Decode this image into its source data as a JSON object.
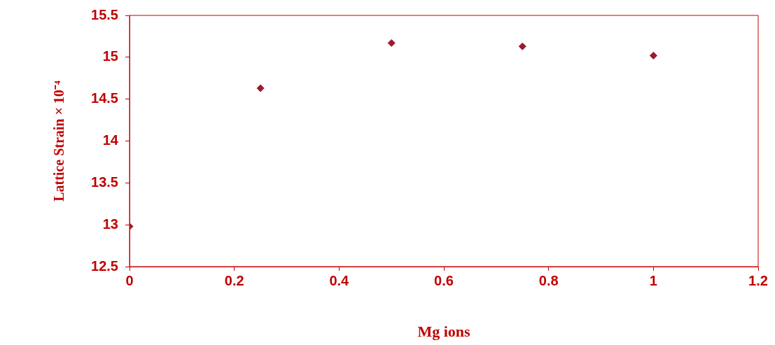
{
  "chart_data": {
    "type": "scatter",
    "xlabel": "Mg ions",
    "ylabel": "Lattice Strain × 10⁻⁴",
    "x": [
      0,
      0.25,
      0.5,
      0.75,
      1
    ],
    "series": [
      {
        "color": "#9b1b30",
        "values": [
          12.98,
          14.63,
          15.17,
          15.13,
          15.02
        ]
      }
    ],
    "xlim": [
      0,
      1.2
    ],
    "xticks": [
      0,
      0.2,
      0.4,
      0.6,
      0.8,
      1,
      1.2
    ],
    "ylim": [
      12.5,
      15.5
    ],
    "yticks": [
      12.5,
      13,
      13.5,
      14,
      14.5,
      15,
      15.5
    ],
    "marker": "diamond",
    "grid": false,
    "legend": false
  }
}
